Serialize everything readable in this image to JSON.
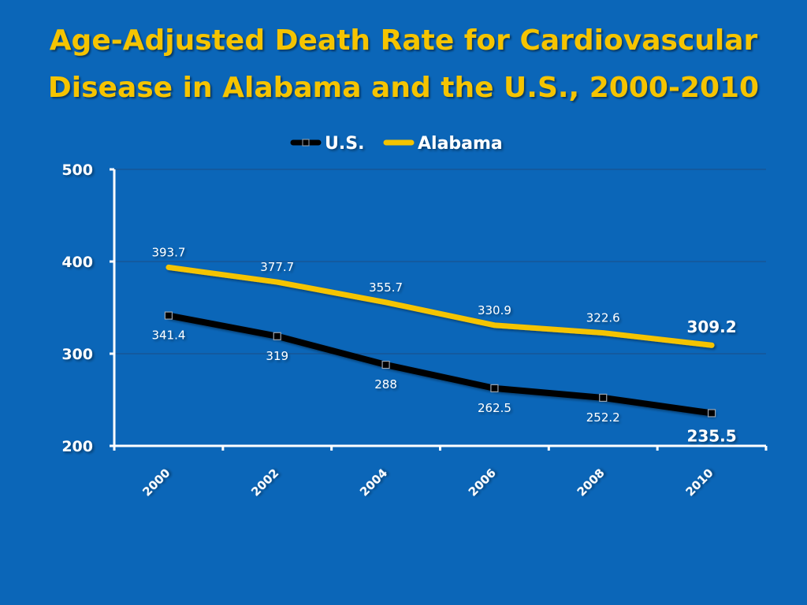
{
  "title_lines": [
    "Age-Adjusted Death Rate for Cardiovascular",
    "Disease in Alabama and the U.S., 2000-2010"
  ],
  "colors": {
    "background": "#0b66b8",
    "title": "#f5c400",
    "us": "#000000",
    "alabama": "#f5c400",
    "axis": "#ffffff",
    "grid": "#1b4f86"
  },
  "chart_data": {
    "type": "line",
    "title": "Age-Adjusted Death Rate for Cardiovascular Disease in Alabama and the U.S., 2000-2010",
    "xlabel": "",
    "ylabel": "",
    "categories": [
      "2000",
      "2002",
      "2004",
      "2006",
      "2008",
      "2010"
    ],
    "ylim": [
      200,
      500
    ],
    "yticks": [
      200,
      300,
      400,
      500
    ],
    "grid": true,
    "legend_position": "top",
    "series": [
      {
        "name": "U.S.",
        "key": "us",
        "values": [
          341.4,
          319,
          288,
          262.5,
          252.2,
          235.5
        ],
        "labels": [
          "341.4",
          "319",
          "288",
          "262.5",
          "252.2",
          "235.5"
        ],
        "markers": true
      },
      {
        "name": "Alabama",
        "key": "alabama",
        "values": [
          393.7,
          377.7,
          355.7,
          330.9,
          322.6,
          309.2
        ],
        "labels": [
          "393.7",
          "377.7",
          "355.7",
          "330.9",
          "322.6",
          "309.2"
        ],
        "markers": false
      }
    ]
  }
}
